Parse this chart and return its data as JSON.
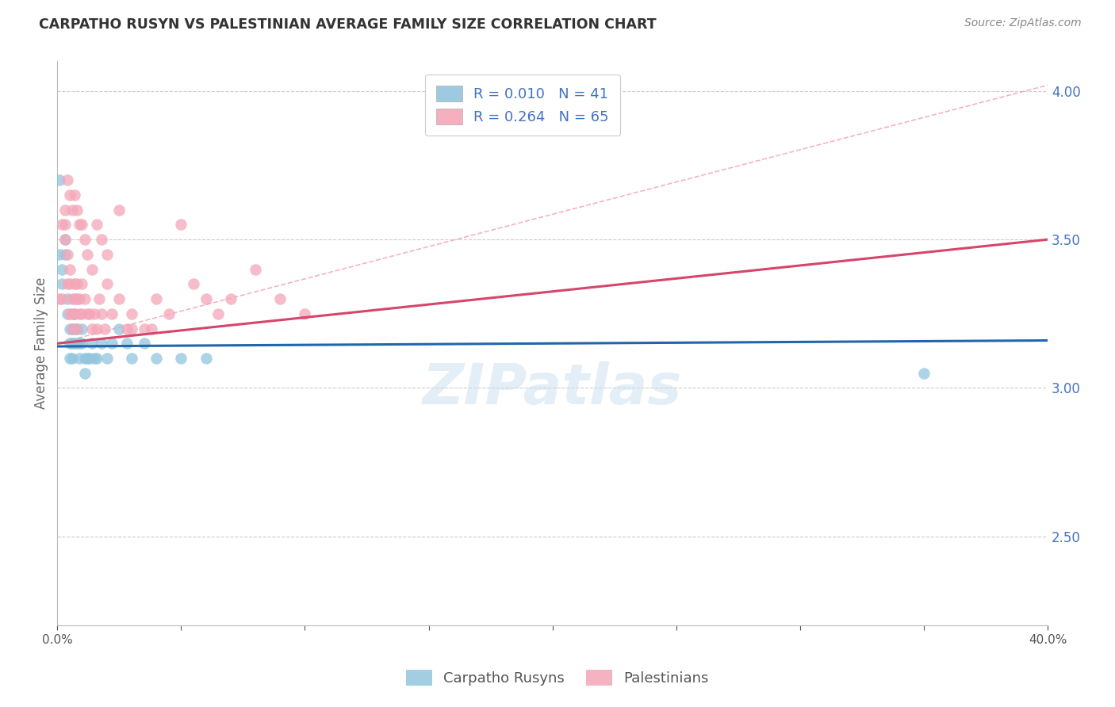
{
  "title": "CARPATHO RUSYN VS PALESTINIAN AVERAGE FAMILY SIZE CORRELATION CHART",
  "source": "Source: ZipAtlas.com",
  "ylabel": "Average Family Size",
  "right_yticks": [
    2.5,
    3.0,
    3.5,
    4.0
  ],
  "legend_blue_r": "0.010",
  "legend_blue_n": "41",
  "legend_pink_r": "0.264",
  "legend_pink_n": "65",
  "legend_label_blue": "Carpatho Rusyns",
  "legend_label_pink": "Palestinians",
  "blue_color": "#92c5de",
  "pink_color": "#f4a6b8",
  "blue_line_color": "#2166ac",
  "pink_line_color": "#d6456b",
  "pink_dashed_color": "#f4a6b8",
  "watermark": "ZIPatlas",
  "xlim": [
    0.0,
    0.4
  ],
  "ylim": [
    2.2,
    4.1
  ],
  "carpatho_x": [
    0.001,
    0.001,
    0.002,
    0.002,
    0.003,
    0.003,
    0.004,
    0.004,
    0.005,
    0.005,
    0.005,
    0.006,
    0.006,
    0.006,
    0.007,
    0.007,
    0.007,
    0.008,
    0.008,
    0.009,
    0.009,
    0.01,
    0.01,
    0.011,
    0.011,
    0.012,
    0.013,
    0.014,
    0.015,
    0.016,
    0.018,
    0.02,
    0.022,
    0.025,
    0.028,
    0.03,
    0.035,
    0.04,
    0.05,
    0.06,
    0.35
  ],
  "carpatho_y": [
    3.7,
    3.45,
    3.4,
    3.35,
    3.5,
    3.45,
    3.3,
    3.25,
    3.2,
    3.15,
    3.1,
    3.2,
    3.15,
    3.1,
    3.25,
    3.2,
    3.15,
    3.2,
    3.15,
    3.15,
    3.1,
    3.2,
    3.15,
    3.1,
    3.05,
    3.1,
    3.1,
    3.15,
    3.1,
    3.1,
    3.15,
    3.1,
    3.15,
    3.2,
    3.15,
    3.1,
    3.15,
    3.1,
    3.1,
    3.1,
    3.05
  ],
  "carpatho_trend": [
    0.0,
    0.4,
    3.14,
    3.16
  ],
  "palestinian_x": [
    0.001,
    0.002,
    0.002,
    0.003,
    0.003,
    0.003,
    0.004,
    0.004,
    0.005,
    0.005,
    0.005,
    0.006,
    0.006,
    0.006,
    0.007,
    0.007,
    0.007,
    0.008,
    0.008,
    0.008,
    0.009,
    0.009,
    0.01,
    0.01,
    0.011,
    0.012,
    0.013,
    0.014,
    0.015,
    0.016,
    0.017,
    0.018,
    0.019,
    0.02,
    0.022,
    0.025,
    0.028,
    0.03,
    0.035,
    0.038,
    0.04,
    0.045,
    0.05,
    0.055,
    0.06,
    0.065,
    0.07,
    0.08,
    0.09,
    0.1,
    0.004,
    0.005,
    0.006,
    0.007,
    0.008,
    0.009,
    0.01,
    0.011,
    0.012,
    0.014,
    0.016,
    0.018,
    0.02,
    0.025,
    0.03
  ],
  "palestinian_y": [
    3.3,
    3.55,
    3.3,
    3.6,
    3.55,
    3.5,
    3.45,
    3.35,
    3.4,
    3.35,
    3.25,
    3.3,
    3.25,
    3.2,
    3.35,
    3.3,
    3.25,
    3.35,
    3.3,
    3.2,
    3.3,
    3.25,
    3.35,
    3.25,
    3.3,
    3.25,
    3.25,
    3.2,
    3.25,
    3.2,
    3.3,
    3.25,
    3.2,
    3.35,
    3.25,
    3.3,
    3.2,
    3.25,
    3.2,
    3.2,
    3.3,
    3.25,
    3.55,
    3.35,
    3.3,
    3.25,
    3.3,
    3.4,
    3.3,
    3.25,
    3.7,
    3.65,
    3.6,
    3.65,
    3.6,
    3.55,
    3.55,
    3.5,
    3.45,
    3.4,
    3.55,
    3.5,
    3.45,
    3.6,
    3.2
  ],
  "palestinian_trend": [
    0.0,
    0.4,
    3.15,
    3.5
  ]
}
